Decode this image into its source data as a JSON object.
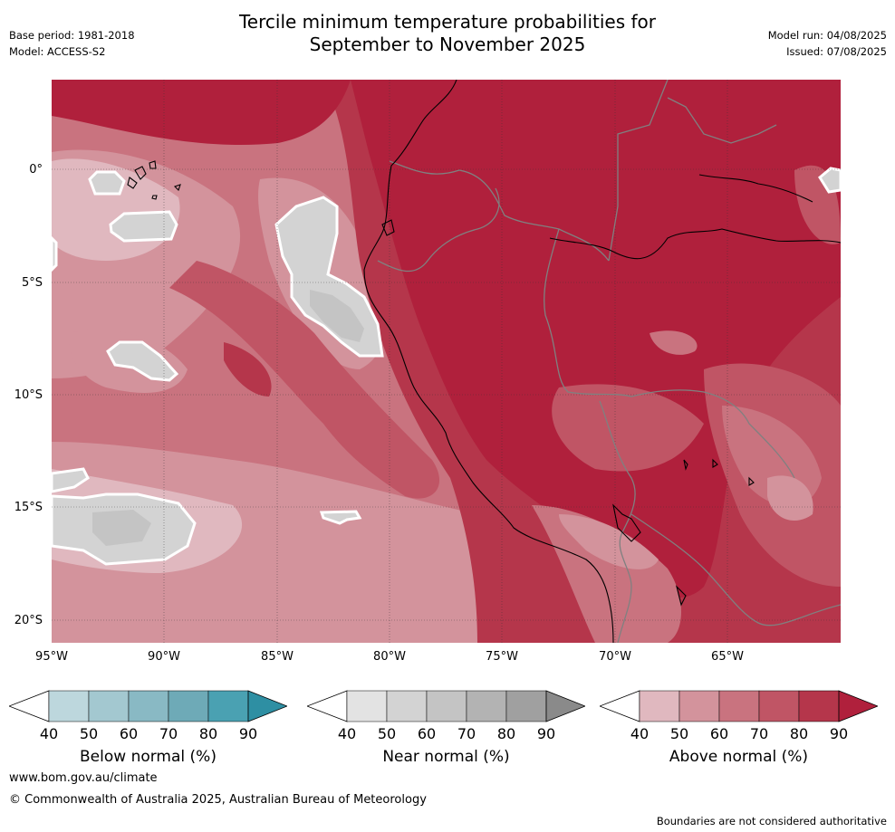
{
  "header": {
    "title_line1": "Tercile minimum temperature probabilities for",
    "title_line2": "September to November 2025",
    "base_period": "Base period: 1981-2018",
    "model": "Model: ACCESS-S2",
    "model_run": "Model run: 04/08/2025",
    "issued": "Issued: 07/08/2025"
  },
  "map": {
    "lat_labels": [
      "0°",
      "5°S",
      "10°S",
      "15°S",
      "20°S"
    ],
    "lon_labels": [
      "95°W",
      "90°W",
      "85°W",
      "80°W",
      "75°W",
      "70°W",
      "65°W"
    ]
  },
  "colorbars": [
    {
      "label": "Below normal (%)",
      "ticks": [
        "40",
        "50",
        "60",
        "70",
        "80",
        "90"
      ],
      "colors": [
        "#bdd7dd",
        "#a3c8d0",
        "#89b9c4",
        "#6eaab7",
        "#4aa1b2",
        "#2e8fa3"
      ]
    },
    {
      "label": "Near normal (%)",
      "ticks": [
        "40",
        "50",
        "60",
        "70",
        "80",
        "90"
      ],
      "colors": [
        "#e3e3e3",
        "#d3d3d3",
        "#c4c4c4",
        "#b3b3b3",
        "#a0a0a0",
        "#8a8a8a"
      ]
    },
    {
      "label": "Above normal (%)",
      "ticks": [
        "40",
        "50",
        "60",
        "70",
        "80",
        "90"
      ],
      "colors": [
        "#e0b8bf",
        "#d3939c",
        "#c9737f",
        "#c05565",
        "#b5364b",
        "#b0203c"
      ]
    }
  ],
  "footer": {
    "url": "www.bom.gov.au/climate",
    "copyright": "© Commonwealth of Australia 2025, Australian Bureau of Meteorology",
    "disclaimer": "Boundaries are not considered authoritative"
  }
}
